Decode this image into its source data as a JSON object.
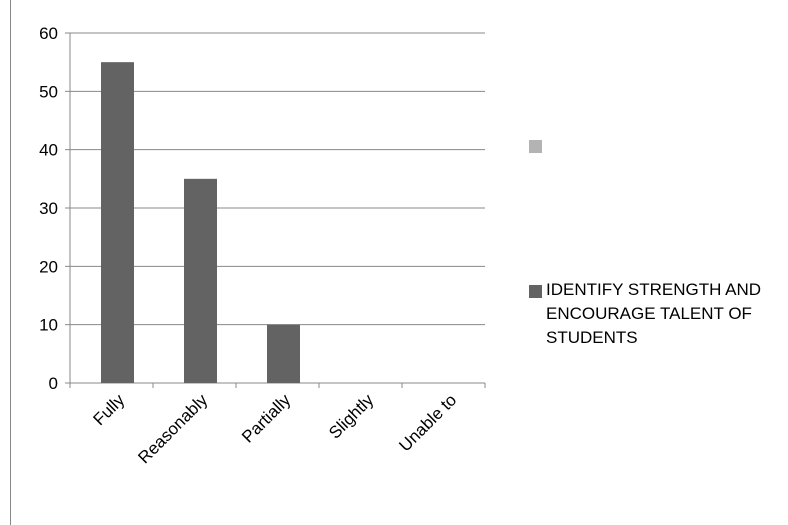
{
  "chart_data": {
    "type": "bar",
    "categories": [
      "Fully",
      "Reasonably",
      "Partially",
      "Slightly",
      "Unable to"
    ],
    "series": [
      {
        "name": "IDENTIFY STRENGTH AND ENCOURAGE TALENT OF STUDENTS",
        "color": "#636363",
        "values": [
          55,
          35,
          10,
          0,
          0
        ]
      }
    ],
    "ylim": [
      0,
      60
    ],
    "yticks": [
      0,
      10,
      20,
      30,
      40,
      50,
      60
    ],
    "grid": true
  }
}
